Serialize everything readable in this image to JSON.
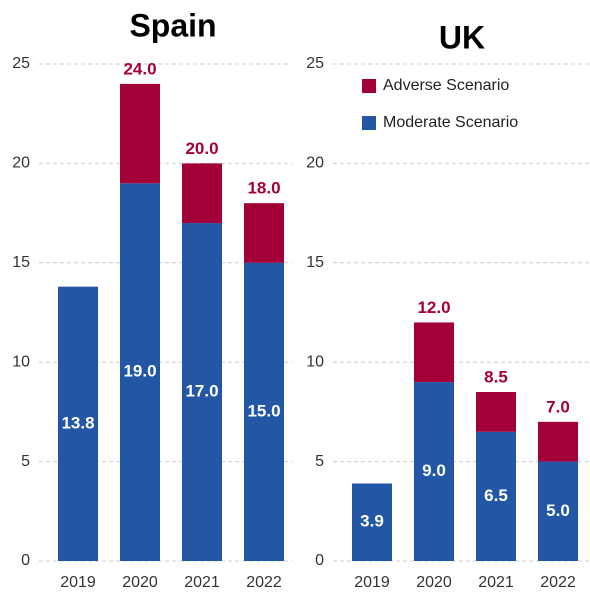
{
  "chart_data": [
    {
      "type": "stacked_bar",
      "title": "Spain",
      "categories": [
        "2019",
        "2020",
        "2021",
        "2022"
      ],
      "series": [
        {
          "color": "#2357a6",
          "values": [
            13.8,
            19,
            17,
            15
          ],
          "value_labels": [
            "13.8",
            "19.0",
            "17.0",
            "15.0"
          ]
        },
        {
          "color": "#a3003a",
          "values": [
            null,
            5,
            3,
            3
          ]
        }
      ],
      "totals": [
        null,
        24,
        20,
        18
      ],
      "total_labels": [
        null,
        "24.0",
        "20.0",
        "18.0"
      ],
      "ylim": [
        0,
        25
      ],
      "yticks": [
        0,
        5,
        10,
        15,
        20,
        25
      ],
      "grid": true
    },
    {
      "type": "stacked_bar",
      "title": "UK",
      "categories": [
        "2019",
        "2020",
        "2021",
        "2022"
      ],
      "series": [
        {
          "name": "Moderate Scenario",
          "color": "#2357a6",
          "values": [
            3.9,
            9,
            6.5,
            5
          ],
          "value_labels": [
            "3.9",
            "9.0",
            "6.5",
            "5.0"
          ]
        },
        {
          "name": "Adverse Scenario",
          "color": "#a3003a",
          "values": [
            null,
            3,
            2,
            2
          ]
        }
      ],
      "totals": [
        null,
        12,
        8.5,
        7
      ],
      "total_labels": [
        null,
        "12.0",
        "8.5",
        "7.0"
      ],
      "ylim": [
        0,
        25
      ],
      "yticks": [
        0,
        5,
        10,
        15,
        20,
        25
      ],
      "grid": true,
      "legend": "top-left"
    }
  ]
}
